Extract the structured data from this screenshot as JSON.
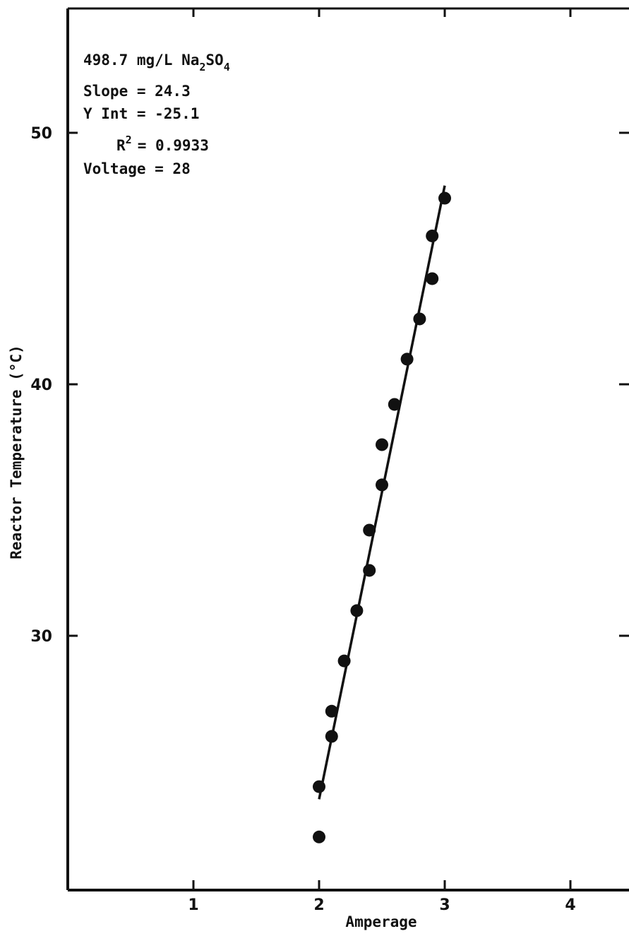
{
  "chart_data": {
    "type": "scatter",
    "xlabel": "Amperage",
    "ylabel": "Reactor Temperature (°C)",
    "xlim": [
      0,
      4.5
    ],
    "ylim": [
      22,
      55
    ],
    "xticks": [
      {
        "value": 1,
        "label": "1"
      },
      {
        "value": 2,
        "label": "2"
      },
      {
        "value": 3,
        "label": "3"
      },
      {
        "value": 4,
        "label": "4"
      }
    ],
    "yticks": [
      {
        "value": 30,
        "label": "30"
      },
      {
        "value": 40,
        "label": "40"
      },
      {
        "value": 50,
        "label": "50"
      }
    ],
    "grid": false,
    "points": [
      {
        "x": 2.0,
        "y": 24.0
      },
      {
        "x": 2.0,
        "y": 24.0
      },
      {
        "x": 2.1,
        "y": 26.0
      },
      {
        "x": 2.1,
        "y": 27.0
      },
      {
        "x": 2.2,
        "y": 29.0
      },
      {
        "x": 2.3,
        "y": 31.0
      },
      {
        "x": 2.4,
        "y": 32.6
      },
      {
        "x": 2.4,
        "y": 34.2
      },
      {
        "x": 2.5,
        "y": 36.0
      },
      {
        "x": 2.5,
        "y": 37.6
      },
      {
        "x": 2.6,
        "y": 39.2
      },
      {
        "x": 2.7,
        "y": 41.0
      },
      {
        "x": 2.8,
        "y": 42.6
      },
      {
        "x": 2.9,
        "y": 44.2
      },
      {
        "x": 2.9,
        "y": 45.9
      },
      {
        "x": 3.0,
        "y": 47.4
      }
    ],
    "fit_line": {
      "x_start": 2.0,
      "y_start": 23.5,
      "x_end": 3.0,
      "y_end": 47.9
    },
    "annotations": {
      "concentration_prefix": "498.7 mg/L Na",
      "subscript_2": "2",
      "concentration_mid": "SO",
      "subscript_4": "4",
      "slope": "Slope = 24.3",
      "y_int": "Y Int = -25.1",
      "r_label": "R",
      "r_superscript": "2",
      "r_value": "= 0.9933",
      "voltage": "Voltage = 28"
    }
  }
}
